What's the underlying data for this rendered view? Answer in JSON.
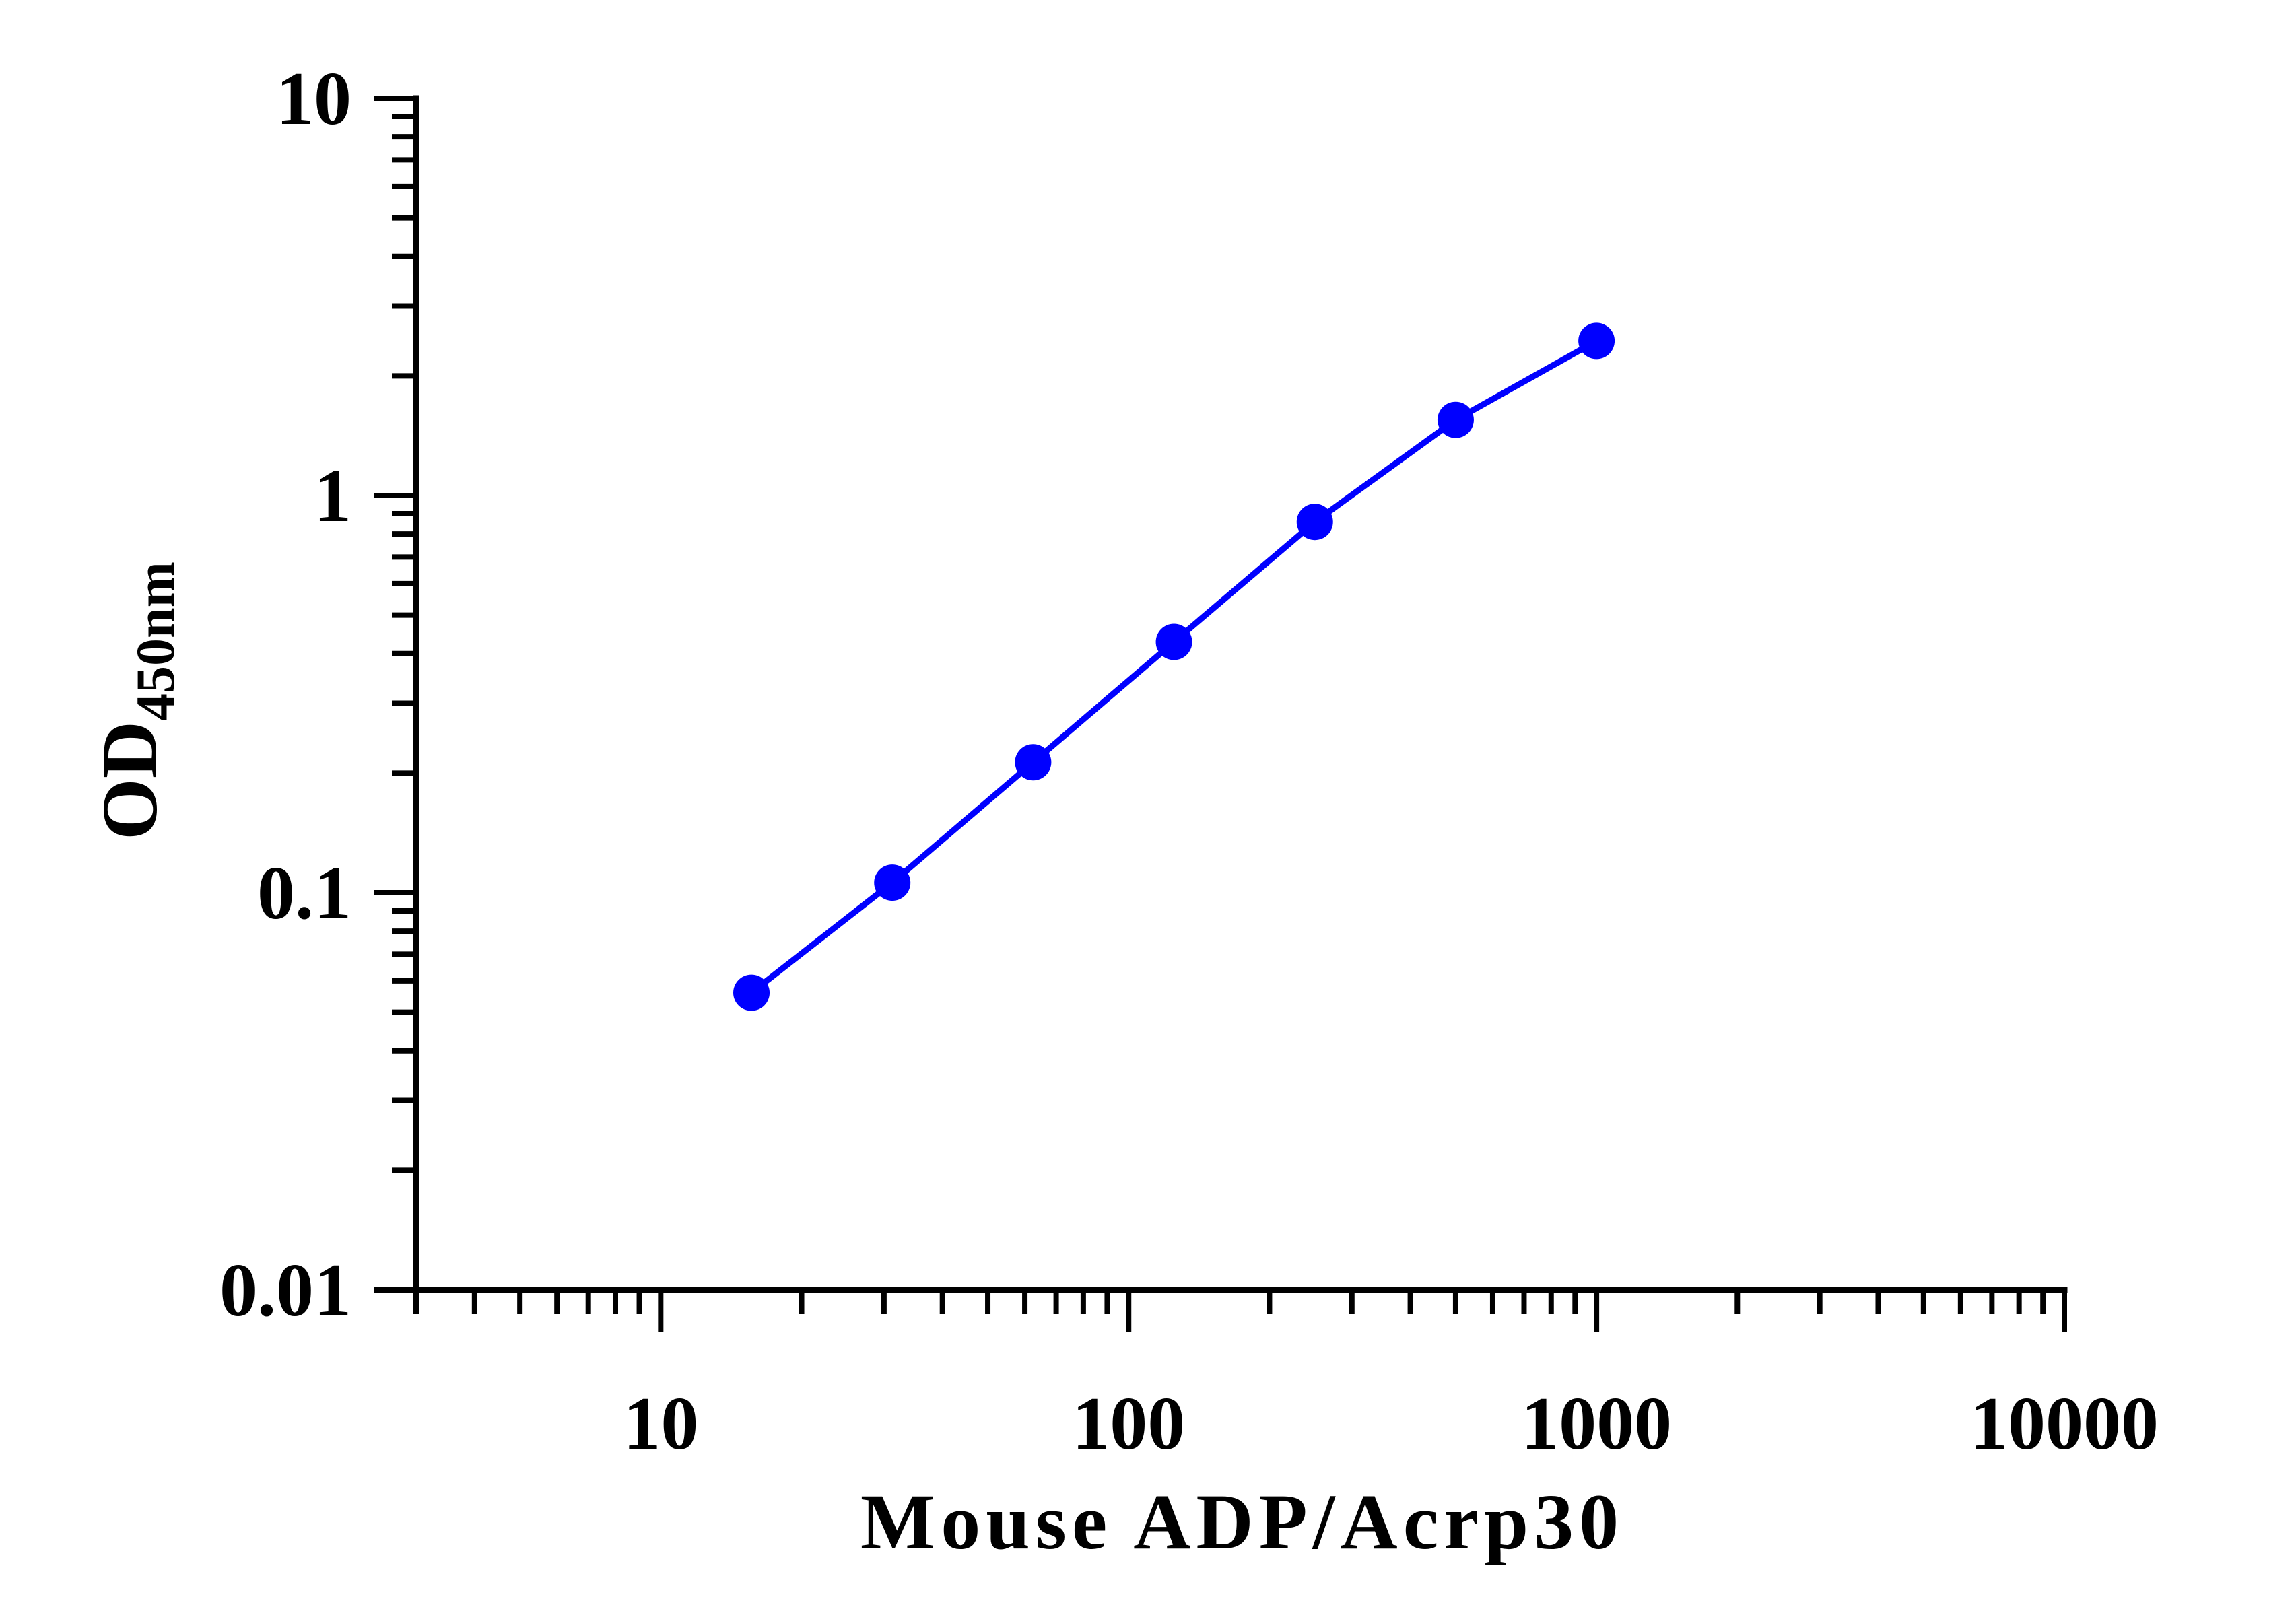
{
  "chart_data": {
    "type": "line",
    "title": "",
    "xlabel": "Mouse ADP/Acrp30",
    "ylabel_main": "OD",
    "ylabel_sub": "450nm",
    "x_scale": "log",
    "y_scale": "log",
    "xlim": [
      3,
      10000
    ],
    "ylim": [
      0.01,
      10
    ],
    "x_ticks": [
      {
        "value": 10,
        "label": "10"
      },
      {
        "value": 100,
        "label": "100"
      },
      {
        "value": 1000,
        "label": "1000"
      },
      {
        "value": 10000,
        "label": "10000"
      }
    ],
    "y_ticks": [
      {
        "value": 0.01,
        "label": "0.01"
      },
      {
        "value": 0.1,
        "label": "0.1"
      },
      {
        "value": 1,
        "label": "1"
      },
      {
        "value": 10,
        "label": "10"
      }
    ],
    "grid": false,
    "legend": "none",
    "series": [
      {
        "color": "#0000ff",
        "x": [
          15.625,
          31.25,
          62.5,
          125,
          250,
          500,
          1000
        ],
        "y": [
          0.056,
          0.106,
          0.213,
          0.428,
          0.858,
          1.55,
          2.45
        ]
      }
    ]
  }
}
